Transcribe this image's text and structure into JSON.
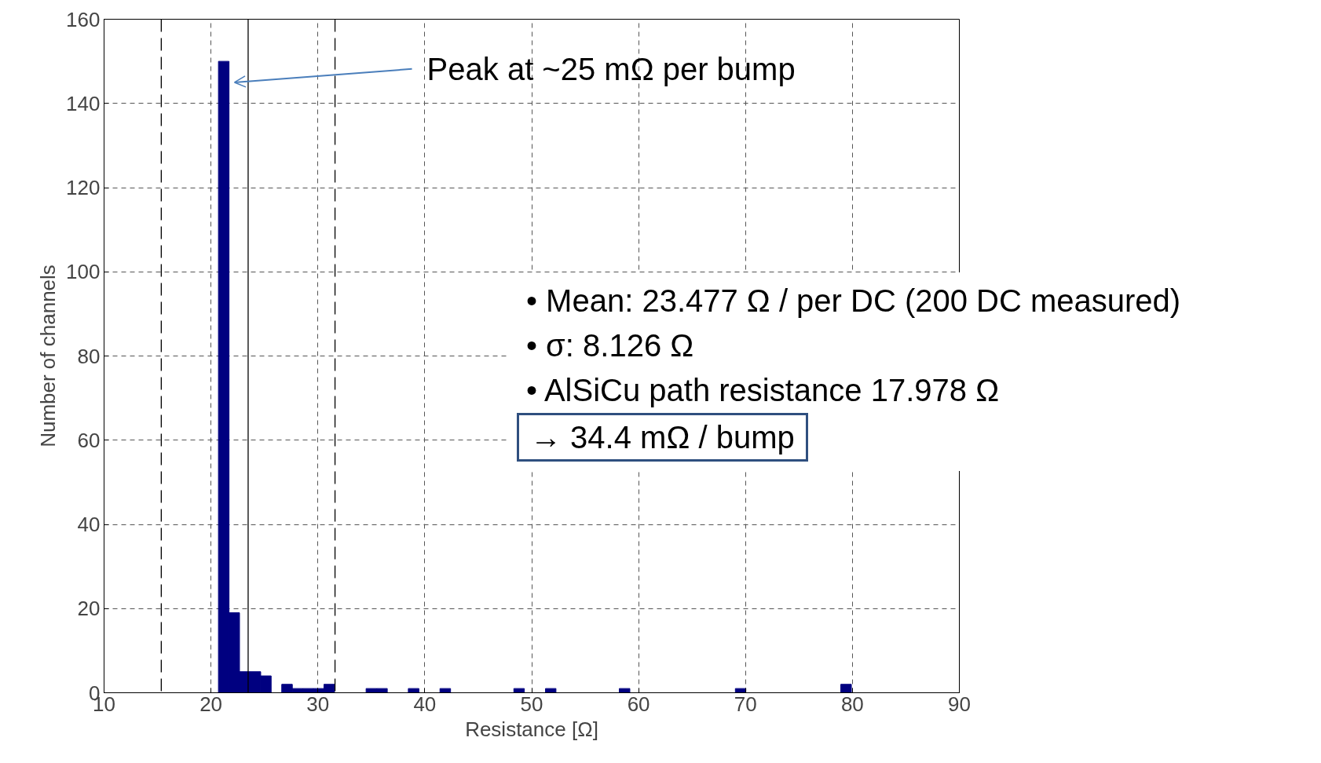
{
  "chart_data": {
    "type": "histogram",
    "xlabel": "Resistance [Ω]",
    "ylabel": "Number of channels",
    "bins": [
      20.7,
      21.69,
      22.67,
      23.66,
      24.65,
      25.63,
      26.62,
      27.61,
      28.59,
      29.58,
      30.57,
      31.55,
      32.54,
      33.53,
      34.51,
      35.5,
      36.49,
      37.47,
      38.46,
      39.45,
      40.43,
      41.42,
      42.41,
      43.39,
      44.38,
      45.37,
      46.35,
      47.34,
      48.33,
      49.31,
      50.3,
      51.29,
      52.27,
      53.26,
      54.25,
      55.23,
      56.22,
      57.21,
      58.19,
      59.18,
      60.17,
      61.15,
      62.14,
      63.13,
      64.11,
      65.1,
      66.09,
      67.07,
      68.06,
      69.05,
      70.03,
      71.02,
      72.01,
      72.99,
      73.98,
      74.97,
      75.95,
      76.94,
      77.93,
      78.91,
      79.9
    ],
    "values": [
      150,
      19,
      5,
      5,
      4,
      0,
      2,
      1,
      1,
      1,
      2,
      0,
      0,
      0,
      1,
      1,
      0,
      0,
      1,
      0,
      0,
      1,
      0,
      0,
      0,
      0,
      0,
      0,
      1,
      0,
      0,
      1,
      0,
      0,
      0,
      0,
      0,
      0,
      1,
      0,
      0,
      0,
      0,
      0,
      0,
      0,
      0,
      0,
      0,
      1,
      0,
      0,
      0,
      0,
      0,
      0,
      0,
      0,
      0,
      2
    ],
    "color": "#000080",
    "xlim": [
      10,
      90
    ],
    "ylim": [
      0,
      160
    ],
    "xticks": [
      10,
      20,
      30,
      40,
      50,
      60,
      70,
      80,
      90
    ],
    "yticks": [
      0,
      20,
      40,
      60,
      80,
      100,
      120,
      140,
      160
    ],
    "grid": true,
    "ref_lines": [
      {
        "axis": "x",
        "value": 15.351,
        "color": "#000000",
        "line_style": "dashed"
      },
      {
        "axis": "x",
        "value": 23.477,
        "color": "#000000",
        "line_style": "solid"
      },
      {
        "axis": "x",
        "value": 31.603,
        "color": "#000000",
        "line_style": "dashed"
      }
    ],
    "annotations": [
      "Peak at ~25 mΩ per bump",
      "• Mean: 23.477 Ω / per DC (200 DC measured)",
      "• σ: 8.126 Ω",
      "• AlSiCu path resistance 17.978 Ω",
      "→ 34.4 mΩ / bump"
    ]
  }
}
